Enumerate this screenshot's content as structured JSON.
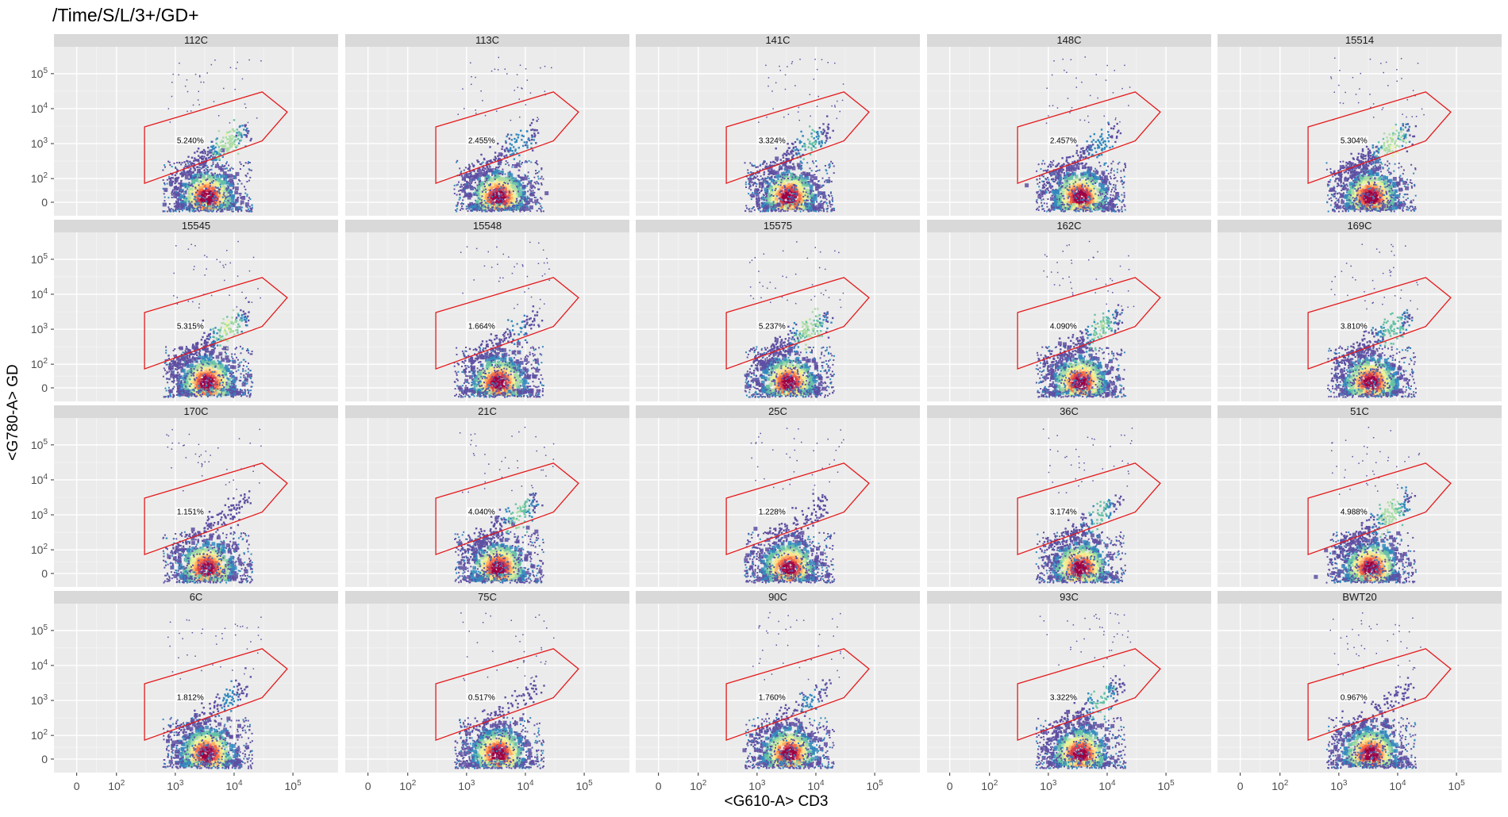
{
  "chart_data": {
    "type": "scatter",
    "title": "/Time/S/L/3+/GD+",
    "xlabel": "<G610-A> CD3",
    "ylabel": "<G780-A> GD",
    "x_scale": "biexponential",
    "y_scale": "biexponential",
    "x_ticks": [
      "0",
      "10^2",
      "10^3",
      "10^4",
      "10^5"
    ],
    "y_ticks": [
      "0",
      "10^2",
      "10^3",
      "10^4",
      "10^5"
    ],
    "grid": true,
    "facets": {
      "rows": 4,
      "cols": 5
    },
    "gate": {
      "name": "GD+",
      "color": "#e41a1c",
      "vertices": [
        [
          300,
          3000
        ],
        [
          300,
          80
        ],
        [
          30000,
          1200
        ],
        [
          80000,
          8000
        ],
        [
          30000,
          30000
        ]
      ]
    },
    "colormap": [
      "#5e4fa2",
      "#3288bd",
      "#66c2a5",
      "#abdda4",
      "#e6f598",
      "#fee08b",
      "#fdae61",
      "#f46d43",
      "#d53e4f",
      "#9e0142"
    ],
    "panels": [
      {
        "name": "112C",
        "gate_pct": "5.240%",
        "pct": 5.24
      },
      {
        "name": "113C",
        "gate_pct": "2.455%",
        "pct": 2.455
      },
      {
        "name": "141C",
        "gate_pct": "3.324%",
        "pct": 3.324
      },
      {
        "name": "148C",
        "gate_pct": "2.457%",
        "pct": 2.457
      },
      {
        "name": "15514",
        "gate_pct": "5.304%",
        "pct": 5.304
      },
      {
        "name": "15545",
        "gate_pct": "5.315%",
        "pct": 5.315
      },
      {
        "name": "15548",
        "gate_pct": "1.664%",
        "pct": 1.664
      },
      {
        "name": "15575",
        "gate_pct": "5.237%",
        "pct": 5.237
      },
      {
        "name": "162C",
        "gate_pct": "4.090%",
        "pct": 4.09
      },
      {
        "name": "169C",
        "gate_pct": "3.810%",
        "pct": 3.81
      },
      {
        "name": "170C",
        "gate_pct": "1.151%",
        "pct": 1.151
      },
      {
        "name": "21C",
        "gate_pct": "4.040%",
        "pct": 4.04
      },
      {
        "name": "25C",
        "gate_pct": "1.228%",
        "pct": 1.228
      },
      {
        "name": "36C",
        "gate_pct": "3.174%",
        "pct": 3.174
      },
      {
        "name": "51C",
        "gate_pct": "4.988%",
        "pct": 4.988
      },
      {
        "name": "6C",
        "gate_pct": "1.812%",
        "pct": 1.812
      },
      {
        "name": "75C",
        "gate_pct": "0.517%",
        "pct": 0.517
      },
      {
        "name": "90C",
        "gate_pct": "1.760%",
        "pct": 1.76
      },
      {
        "name": "93C",
        "gate_pct": "3.322%",
        "pct": 3.322
      },
      {
        "name": "BWT20",
        "gate_pct": "0.967%",
        "pct": 0.967
      }
    ]
  }
}
